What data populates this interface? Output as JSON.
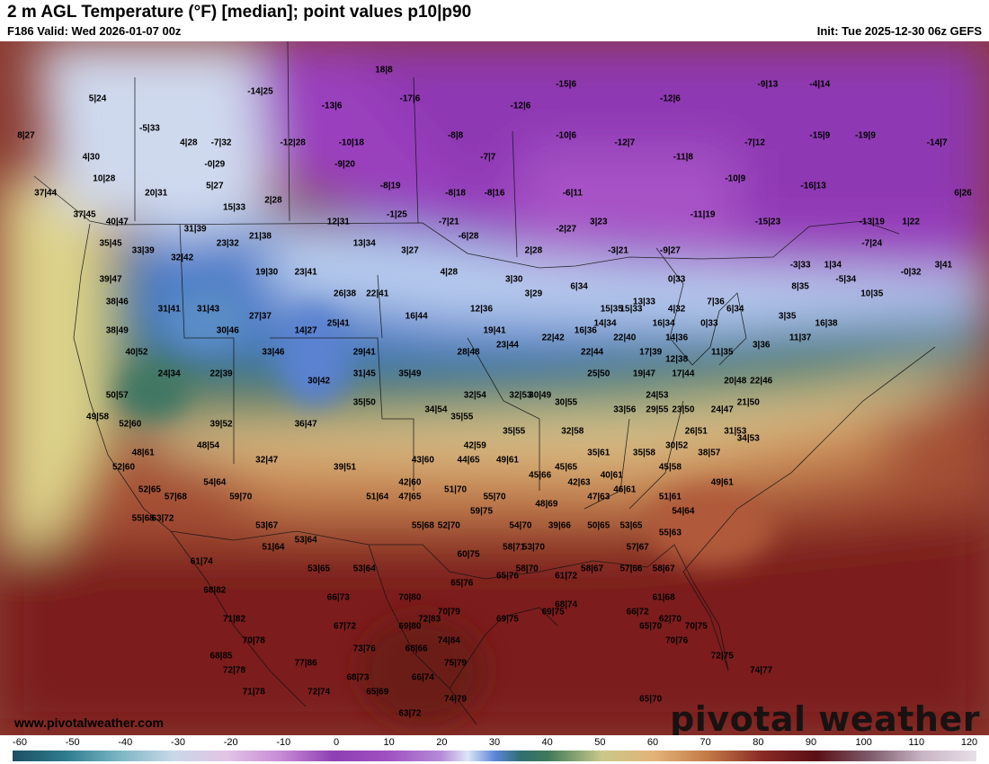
{
  "header": {
    "title": "2 m AGL Temperature (°F) [median]; point values p10|p90",
    "valid": "F186 Valid: Wed 2026-01-07 00z",
    "init": "Init: Tue 2025-12-30 06z GEFS"
  },
  "footer": {
    "website": "www.pivotalweather.com",
    "brand": "pivotal weather"
  },
  "colorbar": {
    "ticks": [
      "-60",
      "-50",
      "-40",
      "-30",
      "-20",
      "-10",
      "0",
      "10",
      "20",
      "30",
      "40",
      "50",
      "60",
      "70",
      "80",
      "90",
      "100",
      "110",
      "120"
    ],
    "range": [
      -60,
      120
    ],
    "stops": [
      [
        -60,
        "#1c4f63"
      ],
      [
        -50,
        "#2f7c8f"
      ],
      [
        -40,
        "#7bb6c4"
      ],
      [
        -30,
        "#c9d8e8"
      ],
      [
        -20,
        "#e2c4e6"
      ],
      [
        -10,
        "#c88bd6"
      ],
      [
        0,
        "#8e3fb3"
      ],
      [
        10,
        "#a050c0"
      ],
      [
        20,
        "#b58bd8"
      ],
      [
        25,
        "#dce6f5"
      ],
      [
        30,
        "#5d86da"
      ],
      [
        35,
        "#2f6e6e"
      ],
      [
        40,
        "#3f7a5a"
      ],
      [
        50,
        "#c9c88a"
      ],
      [
        60,
        "#e3b277"
      ],
      [
        70,
        "#c27845"
      ],
      [
        80,
        "#8a2a26"
      ],
      [
        90,
        "#5a0f14"
      ],
      [
        100,
        "#7d5a6a"
      ],
      [
        110,
        "#c9b5c5"
      ],
      [
        120,
        "#e8e0e8"
      ]
    ]
  },
  "points": [
    {
      "v": "5|24",
      "lon": -124.5,
      "lat": 56.0
    },
    {
      "v": "8|27",
      "lon": -130.0,
      "lat": 53.5
    },
    {
      "v": "4|30",
      "lon": -125.0,
      "lat": 52.0
    },
    {
      "v": "10|28",
      "lon": -124.0,
      "lat": 50.5
    },
    {
      "v": "37|44",
      "lon": -128.5,
      "lat": 49.5
    },
    {
      "v": "37|45",
      "lon": -125.5,
      "lat": 48.0
    },
    {
      "v": "40|47",
      "lon": -123.0,
      "lat": 47.5
    },
    {
      "v": "35|45",
      "lon": -123.5,
      "lat": 46.0
    },
    {
      "v": "-5|33",
      "lon": -120.5,
      "lat": 54.0
    },
    {
      "v": "4|28",
      "lon": -117.5,
      "lat": 53.0
    },
    {
      "v": "-7|32",
      "lon": -115.0,
      "lat": 53.0
    },
    {
      "v": "-0|29",
      "lon": -115.5,
      "lat": 51.5
    },
    {
      "v": "5|27",
      "lon": -115.5,
      "lat": 50.0
    },
    {
      "v": "20|31",
      "lon": -120.0,
      "lat": 49.5
    },
    {
      "v": "15|33",
      "lon": -114.0,
      "lat": 48.5
    },
    {
      "v": "2|28",
      "lon": -111.0,
      "lat": 49.0
    },
    {
      "v": "-14|25",
      "lon": -112.0,
      "lat": 56.5
    },
    {
      "v": "-12|28",
      "lon": -109.5,
      "lat": 53.0
    },
    {
      "v": "-10|18",
      "lon": -105.0,
      "lat": 53.0
    },
    {
      "v": "-9|20",
      "lon": -105.5,
      "lat": 51.5
    },
    {
      "v": "-8|19",
      "lon": -102.0,
      "lat": 50.0
    },
    {
      "v": "18|8",
      "lon": -102.5,
      "lat": 58.0
    },
    {
      "v": "-13|6",
      "lon": -106.5,
      "lat": 55.5
    },
    {
      "v": "-17|6",
      "lon": -100.5,
      "lat": 56.0
    },
    {
      "v": "-8|8",
      "lon": -97.0,
      "lat": 53.5
    },
    {
      "v": "-7|7",
      "lon": -94.5,
      "lat": 52.0
    },
    {
      "v": "-8|18",
      "lon": -97.0,
      "lat": 49.5
    },
    {
      "v": "-8|16",
      "lon": -94.0,
      "lat": 49.5
    },
    {
      "v": "-15|6",
      "lon": -88.5,
      "lat": 57.0
    },
    {
      "v": "-12|6",
      "lon": -92.0,
      "lat": 55.5
    },
    {
      "v": "-10|6",
      "lon": -88.5,
      "lat": 53.5
    },
    {
      "v": "-6|11",
      "lon": -88.0,
      "lat": 49.5
    },
    {
      "v": "-12|7",
      "lon": -84.0,
      "lat": 53.0
    },
    {
      "v": "-12|6",
      "lon": -80.5,
      "lat": 56.0
    },
    {
      "v": "-11|8",
      "lon": -79.5,
      "lat": 52.0
    },
    {
      "v": "-10|9",
      "lon": -75.5,
      "lat": 50.5
    },
    {
      "v": "-16|13",
      "lon": -69.5,
      "lat": 50.0
    },
    {
      "v": "-15|9",
      "lon": -69.0,
      "lat": 53.5
    },
    {
      "v": "-19|9",
      "lon": -65.5,
      "lat": 53.5
    },
    {
      "v": "-14|7",
      "lon": -60.0,
      "lat": 53.0
    },
    {
      "v": "-4|14",
      "lon": -69.0,
      "lat": 57.0
    },
    {
      "v": "-9|13",
      "lon": -73.0,
      "lat": 57.0
    },
    {
      "v": "-7|12",
      "lon": -74.0,
      "lat": 53.0
    },
    {
      "v": "6|26",
      "lon": -58.0,
      "lat": 49.5
    },
    {
      "v": "-11|19",
      "lon": -78.0,
      "lat": 48.0
    },
    {
      "v": "-15|23",
      "lon": -73.0,
      "lat": 47.5
    },
    {
      "v": "-13|19",
      "lon": -65.0,
      "lat": 47.5
    },
    {
      "v": "1|22",
      "lon": -62.0,
      "lat": 47.5
    },
    {
      "v": "-7|24",
      "lon": -65.0,
      "lat": 46.0
    },
    {
      "v": "-3|33",
      "lon": -70.5,
      "lat": 44.5
    },
    {
      "v": "1|34",
      "lon": -68.0,
      "lat": 44.5
    },
    {
      "v": "-0|32",
      "lon": -62.0,
      "lat": 44.0
    },
    {
      "v": "3|41",
      "lon": -59.5,
      "lat": 44.5
    },
    {
      "v": "-5|34",
      "lon": -67.0,
      "lat": 43.5
    },
    {
      "v": "8|35",
      "lon": -70.5,
      "lat": 43.0
    },
    {
      "v": "10|35",
      "lon": -65.0,
      "lat": 42.5
    },
    {
      "v": "-1|25",
      "lon": -101.5,
      "lat": 48.0
    },
    {
      "v": "-7|21",
      "lon": -97.5,
      "lat": 47.5
    },
    {
      "v": "-6|28",
      "lon": -96.0,
      "lat": 46.5
    },
    {
      "v": "-2|27",
      "lon": -88.5,
      "lat": 47.0
    },
    {
      "v": "3|23",
      "lon": -86.0,
      "lat": 47.5
    },
    {
      "v": "2|28",
      "lon": -91.0,
      "lat": 45.5
    },
    {
      "v": "-3|21",
      "lon": -84.5,
      "lat": 45.5
    },
    {
      "v": "-9|27",
      "lon": -80.5,
      "lat": 45.5
    },
    {
      "v": "12|31",
      "lon": -106.0,
      "lat": 47.5
    },
    {
      "v": "13|34",
      "lon": -104.0,
      "lat": 46.0
    },
    {
      "v": "3|27",
      "lon": -100.5,
      "lat": 45.5
    },
    {
      "v": "4|28",
      "lon": -97.5,
      "lat": 44.0
    },
    {
      "v": "3|30",
      "lon": -92.5,
      "lat": 43.5
    },
    {
      "v": "3|29",
      "lon": -91.0,
      "lat": 42.5
    },
    {
      "v": "6|34",
      "lon": -87.5,
      "lat": 43.0
    },
    {
      "v": "0|33",
      "lon": -80.0,
      "lat": 43.5
    },
    {
      "v": "7|36",
      "lon": -77.0,
      "lat": 42.0
    },
    {
      "v": "6|34",
      "lon": -75.5,
      "lat": 41.5
    },
    {
      "v": "3|35",
      "lon": -71.5,
      "lat": 41.0
    },
    {
      "v": "16|38",
      "lon": -68.5,
      "lat": 40.5
    },
    {
      "v": "13|33",
      "lon": -82.5,
      "lat": 42.0
    },
    {
      "v": "15|35",
      "lon": -85.0,
      "lat": 41.5
    },
    {
      "v": "15|33",
      "lon": -83.5,
      "lat": 41.5
    },
    {
      "v": "4|32",
      "lon": -80.0,
      "lat": 41.5
    },
    {
      "v": "16|34",
      "lon": -81.0,
      "lat": 40.5
    },
    {
      "v": "0|33",
      "lon": -77.5,
      "lat": 40.5
    },
    {
      "v": "14|36",
      "lon": -80.0,
      "lat": 39.5
    },
    {
      "v": "11|37",
      "lon": -70.5,
      "lat": 39.5
    },
    {
      "v": "3|36",
      "lon": -73.5,
      "lat": 39.0
    },
    {
      "v": "11|35",
      "lon": -76.5,
      "lat": 38.5
    },
    {
      "v": "12|38",
      "lon": -80.0,
      "lat": 38.0
    },
    {
      "v": "21|38",
      "lon": -112.0,
      "lat": 46.5
    },
    {
      "v": "31|39",
      "lon": -117.0,
      "lat": 47.0
    },
    {
      "v": "23|32",
      "lon": -114.5,
      "lat": 46.0
    },
    {
      "v": "33|39",
      "lon": -121.0,
      "lat": 45.5
    },
    {
      "v": "32|42",
      "lon": -118.0,
      "lat": 45.0
    },
    {
      "v": "39|47",
      "lon": -123.5,
      "lat": 43.5
    },
    {
      "v": "19|30",
      "lon": -111.5,
      "lat": 44.0
    },
    {
      "v": "23|41",
      "lon": -108.5,
      "lat": 44.0
    },
    {
      "v": "26|38",
      "lon": -105.5,
      "lat": 42.5
    },
    {
      "v": "22|41",
      "lon": -103.0,
      "lat": 42.5
    },
    {
      "v": "16|44",
      "lon": -100.0,
      "lat": 41.0
    },
    {
      "v": "12|36",
      "lon": -95.0,
      "lat": 41.5
    },
    {
      "v": "38|46",
      "lon": -123.0,
      "lat": 42.0
    },
    {
      "v": "31|41",
      "lon": -119.0,
      "lat": 41.5
    },
    {
      "v": "31|43",
      "lon": -116.0,
      "lat": 41.5
    },
    {
      "v": "27|37",
      "lon": -112.0,
      "lat": 41.0
    },
    {
      "v": "30|46",
      "lon": -114.5,
      "lat": 40.0
    },
    {
      "v": "14|27",
      "lon": -108.5,
      "lat": 40.0
    },
    {
      "v": "25|41",
      "lon": -106.0,
      "lat": 40.5
    },
    {
      "v": "19|41",
      "lon": -94.0,
      "lat": 40.0
    },
    {
      "v": "38|49",
      "lon": -123.0,
      "lat": 40.0
    },
    {
      "v": "40|52",
      "lon": -121.5,
      "lat": 38.5
    },
    {
      "v": "33|46",
      "lon": -111.0,
      "lat": 38.5
    },
    {
      "v": "28|48",
      "lon": -96.0,
      "lat": 38.5
    },
    {
      "v": "23|44",
      "lon": -93.0,
      "lat": 39.0
    },
    {
      "v": "22|42",
      "lon": -89.5,
      "lat": 39.5
    },
    {
      "v": "16|36",
      "lon": -87.0,
      "lat": 40.0
    },
    {
      "v": "14|34",
      "lon": -85.5,
      "lat": 40.5
    },
    {
      "v": "22|40",
      "lon": -84.0,
      "lat": 39.5
    },
    {
      "v": "22|44",
      "lon": -86.5,
      "lat": 38.5
    },
    {
      "v": "17|39",
      "lon": -82.0,
      "lat": 38.5
    },
    {
      "v": "29|41",
      "lon": -104.0,
      "lat": 38.5
    },
    {
      "v": "24|34",
      "lon": -119.0,
      "lat": 37.0
    },
    {
      "v": "22|39",
      "lon": -115.0,
      "lat": 37.0
    },
    {
      "v": "30|42",
      "lon": -107.5,
      "lat": 36.5
    },
    {
      "v": "31|45",
      "lon": -104.0,
      "lat": 37.0
    },
    {
      "v": "35|49",
      "lon": -100.5,
      "lat": 37.0
    },
    {
      "v": "25|50",
      "lon": -86.0,
      "lat": 37.0
    },
    {
      "v": "19|47",
      "lon": -82.5,
      "lat": 37.0
    },
    {
      "v": "17|44",
      "lon": -79.5,
      "lat": 37.0
    },
    {
      "v": "20|48",
      "lon": -75.5,
      "lat": 36.5
    },
    {
      "v": "22|46",
      "lon": -73.5,
      "lat": 36.5
    },
    {
      "v": "50|57",
      "lon": -123.0,
      "lat": 35.5
    },
    {
      "v": "35|50",
      "lon": -104.0,
      "lat": 35.0
    },
    {
      "v": "32|54",
      "lon": -95.5,
      "lat": 35.5
    },
    {
      "v": "32|53",
      "lon": -92.0,
      "lat": 35.5
    },
    {
      "v": "30|49",
      "lon": -90.5,
      "lat": 35.5
    },
    {
      "v": "30|55",
      "lon": -88.5,
      "lat": 35.0
    },
    {
      "v": "24|53",
      "lon": -81.5,
      "lat": 35.5
    },
    {
      "v": "23|50",
      "lon": -79.5,
      "lat": 34.5
    },
    {
      "v": "24|47",
      "lon": -76.5,
      "lat": 34.5
    },
    {
      "v": "33|56",
      "lon": -84.0,
      "lat": 34.5
    },
    {
      "v": "29|55",
      "lon": -81.5,
      "lat": 34.5
    },
    {
      "v": "21|50",
      "lon": -74.5,
      "lat": 35.0
    },
    {
      "v": "34|54",
      "lon": -98.5,
      "lat": 34.5
    },
    {
      "v": "35|55",
      "lon": -96.5,
      "lat": 34.0
    },
    {
      "v": "49|58",
      "lon": -124.5,
      "lat": 34.0
    },
    {
      "v": "52|60",
      "lon": -122.0,
      "lat": 33.5
    },
    {
      "v": "39|52",
      "lon": -115.0,
      "lat": 33.5
    },
    {
      "v": "36|47",
      "lon": -108.5,
      "lat": 33.5
    },
    {
      "v": "35|55",
      "lon": -92.5,
      "lat": 33.0
    },
    {
      "v": "32|58",
      "lon": -88.0,
      "lat": 33.0
    },
    {
      "v": "26|51",
      "lon": -78.5,
      "lat": 33.0
    },
    {
      "v": "31|53",
      "lon": -75.5,
      "lat": 33.0
    },
    {
      "v": "34|53",
      "lon": -74.5,
      "lat": 32.5
    },
    {
      "v": "30|52",
      "lon": -80.0,
      "lat": 32.0
    },
    {
      "v": "48|61",
      "lon": -121.0,
      "lat": 31.5
    },
    {
      "v": "48|54",
      "lon": -116.0,
      "lat": 32.0
    },
    {
      "v": "42|59",
      "lon": -95.5,
      "lat": 32.0
    },
    {
      "v": "35|61",
      "lon": -86.0,
      "lat": 31.5
    },
    {
      "v": "35|58",
      "lon": -82.5,
      "lat": 31.5
    },
    {
      "v": "38|57",
      "lon": -77.5,
      "lat": 31.5
    },
    {
      "v": "52|60",
      "lon": -122.5,
      "lat": 30.5
    },
    {
      "v": "32|47",
      "lon": -111.5,
      "lat": 31.0
    },
    {
      "v": "39|51",
      "lon": -105.5,
      "lat": 30.5
    },
    {
      "v": "43|60",
      "lon": -99.5,
      "lat": 31.0
    },
    {
      "v": "44|65",
      "lon": -96.0,
      "lat": 31.0
    },
    {
      "v": "49|61",
      "lon": -93.0,
      "lat": 31.0
    },
    {
      "v": "45|65",
      "lon": -88.5,
      "lat": 30.5
    },
    {
      "v": "45|58",
      "lon": -80.5,
      "lat": 30.5
    },
    {
      "v": "45|66",
      "lon": -90.5,
      "lat": 30.0
    },
    {
      "v": "40|61",
      "lon": -85.0,
      "lat": 30.0
    },
    {
      "v": "49|61",
      "lon": -76.5,
      "lat": 29.5
    },
    {
      "v": "54|64",
      "lon": -115.5,
      "lat": 29.5
    },
    {
      "v": "42|60",
      "lon": -100.5,
      "lat": 29.5
    },
    {
      "v": "42|63",
      "lon": -87.5,
      "lat": 29.5
    },
    {
      "v": "52|65",
      "lon": -120.5,
      "lat": 29.0
    },
    {
      "v": "57|68",
      "lon": -118.5,
      "lat": 28.5
    },
    {
      "v": "59|70",
      "lon": -113.5,
      "lat": 28.5
    },
    {
      "v": "51|64",
      "lon": -103.0,
      "lat": 28.5
    },
    {
      "v": "47|65",
      "lon": -100.5,
      "lat": 28.5
    },
    {
      "v": "51|70",
      "lon": -97.0,
      "lat": 29.0
    },
    {
      "v": "55|70",
      "lon": -94.0,
      "lat": 28.5
    },
    {
      "v": "48|69",
      "lon": -90.0,
      "lat": 28.0
    },
    {
      "v": "46|61",
      "lon": -84.0,
      "lat": 29.0
    },
    {
      "v": "47|63",
      "lon": -86.0,
      "lat": 28.5
    },
    {
      "v": "51|61",
      "lon": -80.5,
      "lat": 28.5
    },
    {
      "v": "54|64",
      "lon": -79.5,
      "lat": 27.5
    },
    {
      "v": "59|75",
      "lon": -95.0,
      "lat": 27.5
    },
    {
      "v": "54|70",
      "lon": -92.0,
      "lat": 26.5
    },
    {
      "v": "50|65",
      "lon": -86.0,
      "lat": 26.5
    },
    {
      "v": "53|65",
      "lon": -83.5,
      "lat": 26.5
    },
    {
      "v": "55|63",
      "lon": -80.5,
      "lat": 26.0
    },
    {
      "v": "55|68",
      "lon": -121.0,
      "lat": 27.0
    },
    {
      "v": "63|72",
      "lon": -119.5,
      "lat": 27.0
    },
    {
      "v": "53|67",
      "lon": -111.5,
      "lat": 26.5
    },
    {
      "v": "55|68",
      "lon": -99.5,
      "lat": 26.5
    },
    {
      "v": "52|70",
      "lon": -97.5,
      "lat": 26.5
    },
    {
      "v": "39|66",
      "lon": -89.0,
      "lat": 26.5
    },
    {
      "v": "53|64",
      "lon": -108.5,
      "lat": 25.5
    },
    {
      "v": "51|64",
      "lon": -111.0,
      "lat": 25.0
    },
    {
      "v": "58|71",
      "lon": -92.5,
      "lat": 25.0
    },
    {
      "v": "53|70",
      "lon": -91.0,
      "lat": 25.0
    },
    {
      "v": "57|67",
      "lon": -83.0,
      "lat": 25.0
    },
    {
      "v": "61|74",
      "lon": -116.5,
      "lat": 24.0
    },
    {
      "v": "60|75",
      "lon": -96.0,
      "lat": 24.5
    },
    {
      "v": "53|65",
      "lon": -107.5,
      "lat": 23.5
    },
    {
      "v": "53|64",
      "lon": -104.0,
      "lat": 23.5
    },
    {
      "v": "58|70",
      "lon": -91.5,
      "lat": 23.5
    },
    {
      "v": "61|72",
      "lon": -88.5,
      "lat": 23.0
    },
    {
      "v": "58|67",
      "lon": -86.5,
      "lat": 23.5
    },
    {
      "v": "57|66",
      "lon": -83.5,
      "lat": 23.5
    },
    {
      "v": "58|67",
      "lon": -81.0,
      "lat": 23.5
    },
    {
      "v": "65|76",
      "lon": -93.0,
      "lat": 23.0
    },
    {
      "v": "65|76",
      "lon": -96.5,
      "lat": 22.5
    },
    {
      "v": "68|82",
      "lon": -115.5,
      "lat": 22.0
    },
    {
      "v": "66|73",
      "lon": -106.0,
      "lat": 21.5
    },
    {
      "v": "70|80",
      "lon": -100.5,
      "lat": 21.5
    },
    {
      "v": "68|74",
      "lon": -88.5,
      "lat": 21.0
    },
    {
      "v": "61|68",
      "lon": -81.0,
      "lat": 21.5
    },
    {
      "v": "70|79",
      "lon": -97.5,
      "lat": 20.5
    },
    {
      "v": "72|83",
      "lon": -99.0,
      "lat": 20.0
    },
    {
      "v": "69|75",
      "lon": -93.0,
      "lat": 20.0
    },
    {
      "v": "69|75",
      "lon": -89.5,
      "lat": 20.5
    },
    {
      "v": "71|82",
      "lon": -114.0,
      "lat": 20.0
    },
    {
      "v": "67|72",
      "lon": -105.5,
      "lat": 19.5
    },
    {
      "v": "69|80",
      "lon": -100.5,
      "lat": 19.5
    },
    {
      "v": "66|72",
      "lon": -83.0,
      "lat": 20.5
    },
    {
      "v": "62|70",
      "lon": -80.5,
      "lat": 20.0
    },
    {
      "v": "65|70",
      "lon": -82.0,
      "lat": 19.5
    },
    {
      "v": "70|75",
      "lon": -78.5,
      "lat": 19.5
    },
    {
      "v": "70|78",
      "lon": -112.5,
      "lat": 18.5
    },
    {
      "v": "73|76",
      "lon": -104.0,
      "lat": 18.0
    },
    {
      "v": "68|66",
      "lon": -100.0,
      "lat": 18.0
    },
    {
      "v": "74|84",
      "lon": -97.5,
      "lat": 18.5
    },
    {
      "v": "70|76",
      "lon": -80.0,
      "lat": 18.5
    },
    {
      "v": "68|85",
      "lon": -115.0,
      "lat": 17.5
    },
    {
      "v": "77|86",
      "lon": -108.5,
      "lat": 17.0
    },
    {
      "v": "75|79",
      "lon": -97.0,
      "lat": 17.0
    },
    {
      "v": "72|75",
      "lon": -76.5,
      "lat": 17.5
    },
    {
      "v": "72|78",
      "lon": -114.0,
      "lat": 16.5
    },
    {
      "v": "68|73",
      "lon": -104.5,
      "lat": 16.0
    },
    {
      "v": "66|74",
      "lon": -99.5,
      "lat": 16.0
    },
    {
      "v": "74|77",
      "lon": -73.5,
      "lat": 16.5
    },
    {
      "v": "71|78",
      "lon": -112.5,
      "lat": 15.0
    },
    {
      "v": "72|74",
      "lon": -107.5,
      "lat": 15.0
    },
    {
      "v": "65|69",
      "lon": -103.0,
      "lat": 15.0
    },
    {
      "v": "74|79",
      "lon": -97.0,
      "lat": 14.5
    },
    {
      "v": "63|72",
      "lon": -100.5,
      "lat": 13.5
    },
    {
      "v": "65|70",
      "lon": -82.0,
      "lat": 14.5
    }
  ]
}
